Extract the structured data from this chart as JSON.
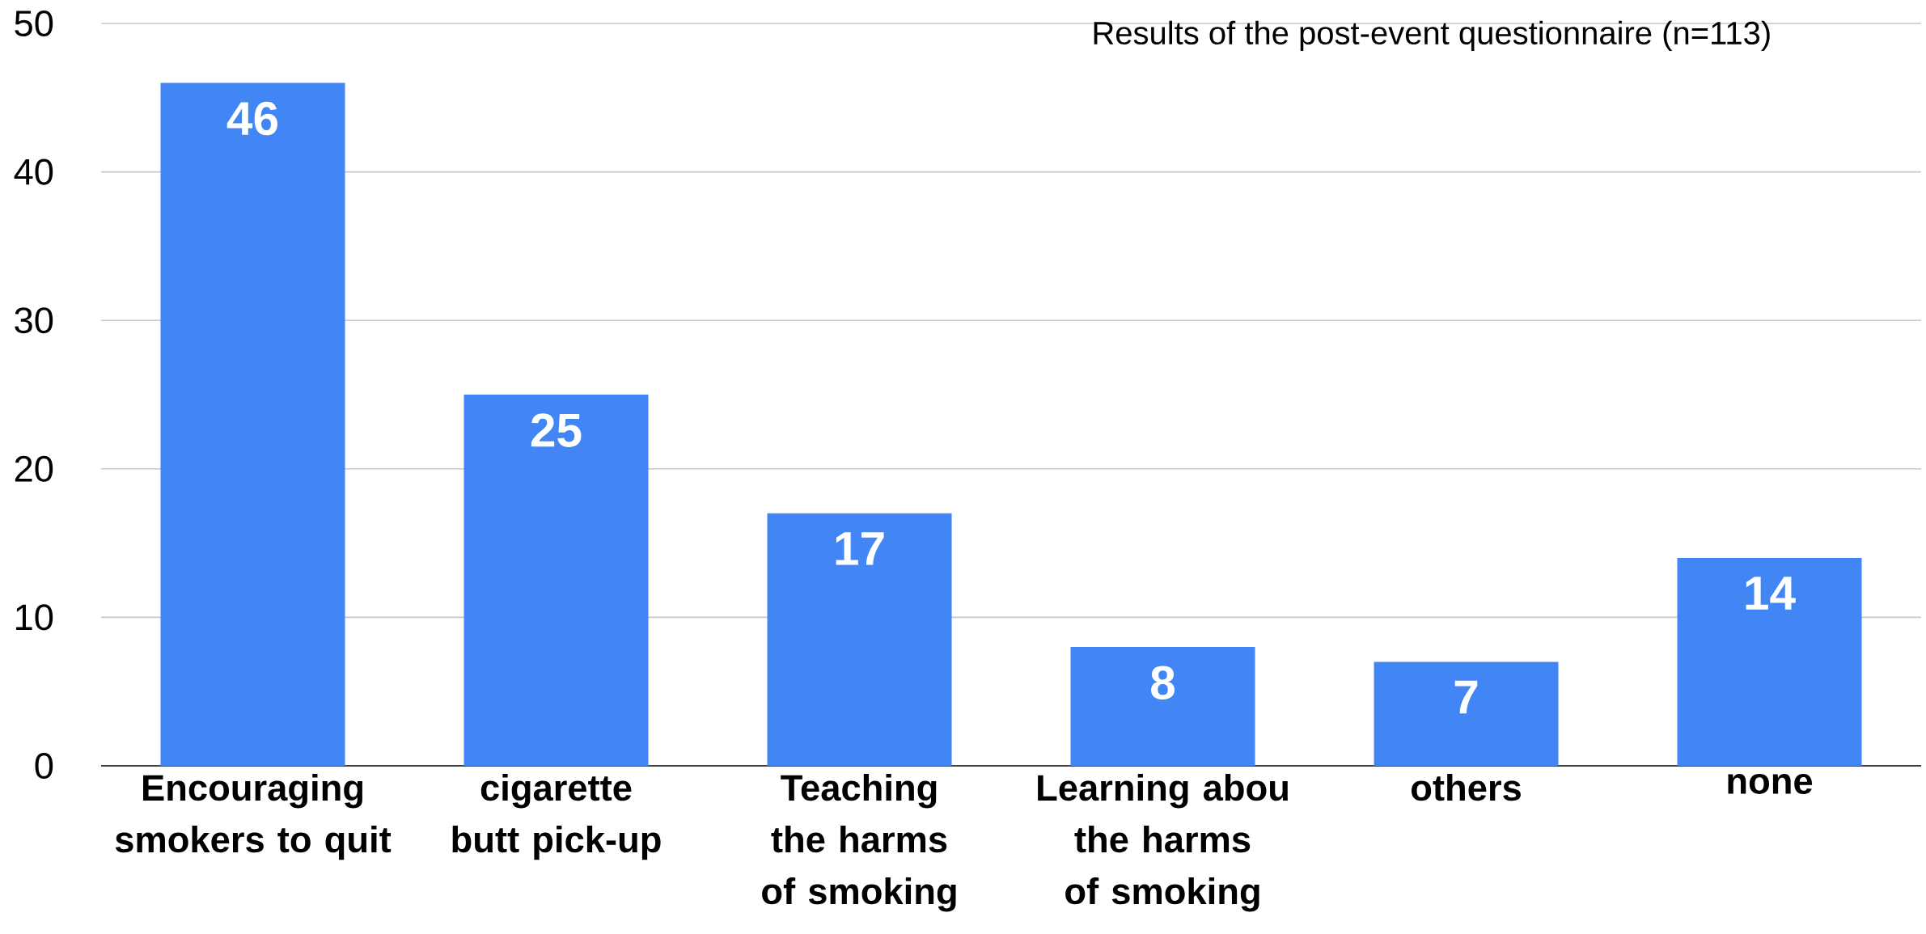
{
  "chart_data": {
    "type": "bar",
    "title": "Results of the post-event questionnaire (n=113)",
    "categories": [
      "Encouraging smokers to quit",
      "cigarette butt pick-up",
      "Teaching the harms of smoking",
      "Learning abou the harms of smoking",
      "others",
      "none"
    ],
    "values": [
      46,
      25,
      17,
      8,
      7,
      14
    ],
    "color": "#4285f4",
    "ylim": [
      0,
      50
    ],
    "yticks": [
      0,
      10,
      20,
      30,
      40,
      50
    ],
    "grid": "y",
    "data_labels": true
  }
}
